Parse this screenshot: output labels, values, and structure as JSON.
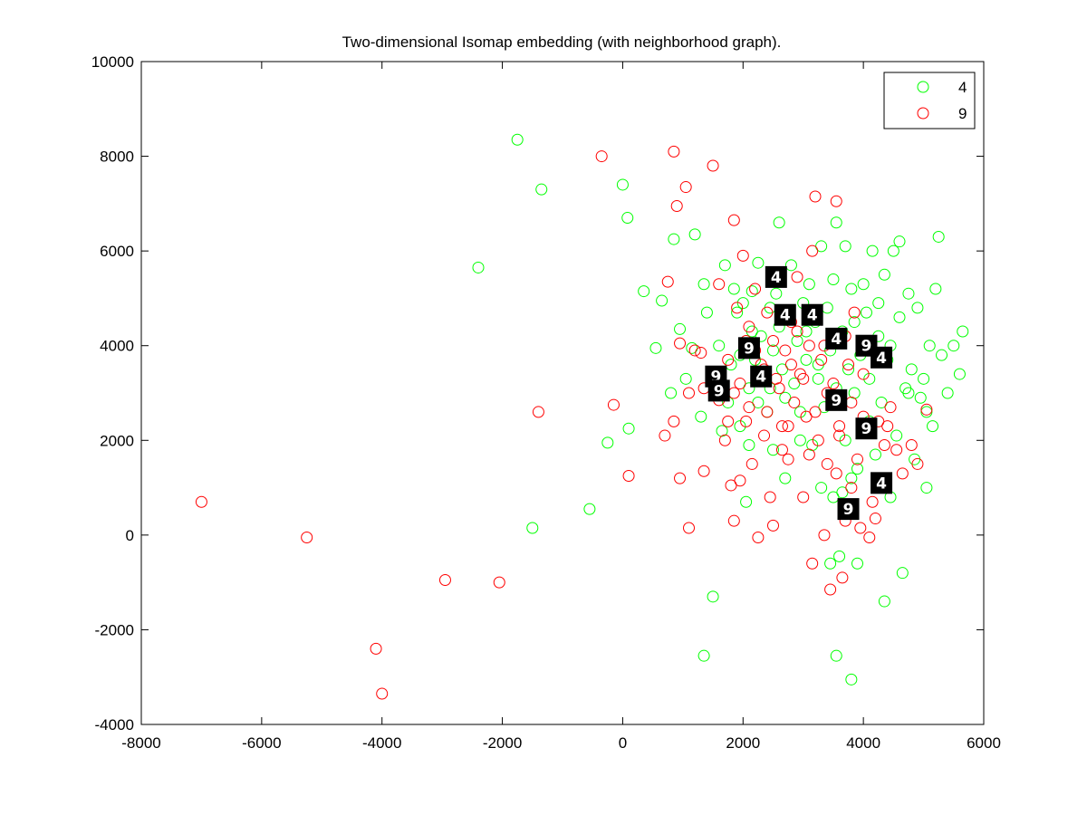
{
  "chart_data": {
    "type": "scatter",
    "title": "Two-dimensional Isomap embedding (with neighborhood graph).",
    "xlabel": "",
    "ylabel": "",
    "xlim": [
      -8000,
      6000
    ],
    "ylim": [
      -4000,
      10000
    ],
    "xticks": [
      -8000,
      -6000,
      -4000,
      -2000,
      0,
      2000,
      4000,
      6000
    ],
    "yticks": [
      -4000,
      -2000,
      0,
      2000,
      4000,
      6000,
      8000,
      10000
    ],
    "xtick_labels": [
      "-8000",
      "-6000",
      "-4000",
      "-2000",
      "0",
      "2000",
      "4000",
      "6000"
    ],
    "ytick_labels": [
      "-4000",
      "-2000",
      "0",
      "2000",
      "4000",
      "6000",
      "8000",
      "10000"
    ],
    "grid": false,
    "legend_position": "top-right",
    "series": [
      {
        "name": "4",
        "color": "#00ff00",
        "marker": "circle-open",
        "points": [
          [
            -1750,
            8350
          ],
          [
            -1350,
            7300
          ],
          [
            -2400,
            5650
          ],
          [
            -1500,
            150
          ],
          [
            -550,
            550
          ],
          [
            -250,
            1950
          ],
          [
            0,
            7400
          ],
          [
            80,
            6700
          ],
          [
            100,
            2250
          ],
          [
            350,
            5150
          ],
          [
            550,
            3950
          ],
          [
            650,
            4950
          ],
          [
            800,
            3000
          ],
          [
            850,
            6250
          ],
          [
            950,
            4350
          ],
          [
            1050,
            3300
          ],
          [
            1150,
            3950
          ],
          [
            1200,
            6350
          ],
          [
            1300,
            2500
          ],
          [
            1350,
            5300
          ],
          [
            1400,
            4700
          ],
          [
            1350,
            -2550
          ],
          [
            1500,
            -1300
          ],
          [
            1600,
            4000
          ],
          [
            1700,
            5700
          ],
          [
            1750,
            2800
          ],
          [
            1800,
            3600
          ],
          [
            1850,
            5200
          ],
          [
            1900,
            4700
          ],
          [
            1950,
            2300
          ],
          [
            2000,
            4900
          ],
          [
            2050,
            700
          ],
          [
            2100,
            3100
          ],
          [
            2150,
            5150
          ],
          [
            2200,
            3700
          ],
          [
            2250,
            5750
          ],
          [
            2250,
            2800
          ],
          [
            2300,
            4200
          ],
          [
            2350,
            3300
          ],
          [
            2400,
            2600
          ],
          [
            2450,
            4800
          ],
          [
            2500,
            3900
          ],
          [
            2550,
            5100
          ],
          [
            2600,
            6600
          ],
          [
            2600,
            4400
          ],
          [
            2650,
            3500
          ],
          [
            2700,
            2900
          ],
          [
            2750,
            4700
          ],
          [
            2800,
            5700
          ],
          [
            2850,
            3200
          ],
          [
            2900,
            4100
          ],
          [
            2950,
            2600
          ],
          [
            3000,
            4900
          ],
          [
            3050,
            3700
          ],
          [
            3100,
            5300
          ],
          [
            3150,
            1900
          ],
          [
            3200,
            4500
          ],
          [
            3250,
            3300
          ],
          [
            3300,
            6100
          ],
          [
            3350,
            2700
          ],
          [
            3400,
            4800
          ],
          [
            3450,
            3900
          ],
          [
            3500,
            5400
          ],
          [
            3500,
            800
          ],
          [
            3550,
            6600
          ],
          [
            3550,
            3100
          ],
          [
            3600,
            -450
          ],
          [
            3650,
            4300
          ],
          [
            3700,
            2000
          ],
          [
            3700,
            6100
          ],
          [
            3750,
            3500
          ],
          [
            3800,
            5200
          ],
          [
            3800,
            1200
          ],
          [
            3850,
            4500
          ],
          [
            3900,
            -600
          ],
          [
            3950,
            3800
          ],
          [
            4000,
            5300
          ],
          [
            4000,
            2200
          ],
          [
            4050,
            4700
          ],
          [
            4100,
            3300
          ],
          [
            4150,
            6000
          ],
          [
            4200,
            1700
          ],
          [
            4250,
            4200
          ],
          [
            4300,
            2800
          ],
          [
            4350,
            5500
          ],
          [
            4400,
            3700
          ],
          [
            4450,
            4000
          ],
          [
            4450,
            800
          ],
          [
            4500,
            6000
          ],
          [
            4550,
            2100
          ],
          [
            4600,
            4600
          ],
          [
            4650,
            -800
          ],
          [
            4700,
            3100
          ],
          [
            4750,
            5100
          ],
          [
            4800,
            3500
          ],
          [
            4850,
            1600
          ],
          [
            4900,
            4800
          ],
          [
            4950,
            2900
          ],
          [
            5000,
            3300
          ],
          [
            5050,
            1000
          ],
          [
            5100,
            4000
          ],
          [
            5150,
            2300
          ],
          [
            5200,
            5200
          ],
          [
            5250,
            6300
          ],
          [
            5300,
            3800
          ],
          [
            5400,
            3000
          ],
          [
            5500,
            4000
          ],
          [
            5600,
            3400
          ],
          [
            5650,
            4300
          ],
          [
            4350,
            -1400
          ],
          [
            3550,
            -2550
          ],
          [
            3800,
            -3050
          ],
          [
            3450,
            -600
          ],
          [
            4600,
            6200
          ],
          [
            4100,
            2400
          ],
          [
            3900,
            1400
          ],
          [
            3300,
            1000
          ],
          [
            2950,
            2000
          ],
          [
            2500,
            1800
          ],
          [
            2100,
            1900
          ],
          [
            2700,
            1200
          ],
          [
            3650,
            900
          ],
          [
            4750,
            3000
          ],
          [
            5050,
            2600
          ],
          [
            3250,
            3600
          ],
          [
            2450,
            3100
          ],
          [
            1950,
            3800
          ],
          [
            1650,
            2200
          ],
          [
            2150,
            4300
          ],
          [
            3050,
            4300
          ],
          [
            3850,
            3000
          ],
          [
            4250,
            4900
          ]
        ]
      },
      {
        "name": "9",
        "color": "#ff0000",
        "marker": "circle-open",
        "points": [
          [
            -7000,
            700
          ],
          [
            -5250,
            -50
          ],
          [
            -4100,
            -2400
          ],
          [
            -4000,
            -3350
          ],
          [
            -2950,
            -950
          ],
          [
            -2050,
            -1000
          ],
          [
            -1400,
            2600
          ],
          [
            -350,
            8000
          ],
          [
            -150,
            2750
          ],
          [
            100,
            1250
          ],
          [
            700,
            2100
          ],
          [
            750,
            5350
          ],
          [
            850,
            8100
          ],
          [
            900,
            6950
          ],
          [
            950,
            4050
          ],
          [
            1050,
            7350
          ],
          [
            1100,
            150
          ],
          [
            1200,
            3900
          ],
          [
            1300,
            3850
          ],
          [
            1350,
            1350
          ],
          [
            1500,
            7800
          ],
          [
            1500,
            3350
          ],
          [
            1600,
            2850
          ],
          [
            1700,
            2000
          ],
          [
            1750,
            3700
          ],
          [
            1800,
            1050
          ],
          [
            1850,
            6650
          ],
          [
            1850,
            300
          ],
          [
            1900,
            4800
          ],
          [
            1950,
            3200
          ],
          [
            2000,
            5900
          ],
          [
            2050,
            2400
          ],
          [
            2100,
            4400
          ],
          [
            2150,
            1500
          ],
          [
            2200,
            5200
          ],
          [
            2250,
            -50
          ],
          [
            2300,
            3600
          ],
          [
            2350,
            2100
          ],
          [
            2400,
            4700
          ],
          [
            2450,
            800
          ],
          [
            2500,
            200
          ],
          [
            2550,
            3300
          ],
          [
            2600,
            5500
          ],
          [
            2650,
            2300
          ],
          [
            2700,
            3900
          ],
          [
            2750,
            1600
          ],
          [
            2800,
            4500
          ],
          [
            2850,
            2800
          ],
          [
            2900,
            5450
          ],
          [
            2950,
            3400
          ],
          [
            3000,
            800
          ],
          [
            3050,
            2500
          ],
          [
            3100,
            4000
          ],
          [
            3150,
            6000
          ],
          [
            3150,
            -600
          ],
          [
            3200,
            7150
          ],
          [
            3250,
            2000
          ],
          [
            3300,
            3700
          ],
          [
            3350,
            0
          ],
          [
            3400,
            1500
          ],
          [
            3450,
            -1150
          ],
          [
            3500,
            3200
          ],
          [
            3550,
            7050
          ],
          [
            3550,
            1300
          ],
          [
            3600,
            2300
          ],
          [
            3650,
            -900
          ],
          [
            3700,
            300
          ],
          [
            3750,
            3600
          ],
          [
            3800,
            2800
          ],
          [
            3850,
            4700
          ],
          [
            3900,
            1600
          ],
          [
            3950,
            150
          ],
          [
            4000,
            2500
          ],
          [
            4050,
            3900
          ],
          [
            4100,
            -50
          ],
          [
            4150,
            700
          ],
          [
            4200,
            350
          ],
          [
            4250,
            2400
          ],
          [
            4350,
            1900
          ],
          [
            4450,
            2700
          ],
          [
            4550,
            1800
          ],
          [
            4650,
            1300
          ],
          [
            4800,
            1900
          ],
          [
            4900,
            1500
          ],
          [
            5050,
            2650
          ],
          [
            1850,
            3000
          ],
          [
            2100,
            2700
          ],
          [
            2400,
            2600
          ],
          [
            2600,
            3100
          ],
          [
            2800,
            3600
          ],
          [
            3000,
            3300
          ],
          [
            3200,
            2600
          ],
          [
            3400,
            3000
          ],
          [
            2200,
            3900
          ],
          [
            2500,
            4100
          ],
          [
            2900,
            4300
          ],
          [
            1600,
            5300
          ],
          [
            1950,
            1150
          ],
          [
            1350,
            3100
          ],
          [
            1100,
            3000
          ],
          [
            950,
            1200
          ],
          [
            850,
            2400
          ],
          [
            3600,
            2100
          ],
          [
            3800,
            1000
          ],
          [
            2750,
            2300
          ],
          [
            2350,
            3500
          ],
          [
            3700,
            4200
          ],
          [
            4000,
            3400
          ],
          [
            4400,
            2300
          ],
          [
            3350,
            4000
          ],
          [
            1750,
            2400
          ],
          [
            2050,
            4100
          ],
          [
            2650,
            1800
          ],
          [
            3100,
            1700
          ]
        ]
      }
    ],
    "thumbnails": [
      {
        "x": 2550,
        "y": 5450,
        "label": "4"
      },
      {
        "x": 2700,
        "y": 4650,
        "label": "4"
      },
      {
        "x": 3150,
        "y": 4650,
        "label": "4"
      },
      {
        "x": 3550,
        "y": 4150,
        "label": "4"
      },
      {
        "x": 2100,
        "y": 3950,
        "label": "9"
      },
      {
        "x": 4050,
        "y": 4000,
        "label": "9"
      },
      {
        "x": 4300,
        "y": 3750,
        "label": "4"
      },
      {
        "x": 1550,
        "y": 3350,
        "label": "9"
      },
      {
        "x": 2300,
        "y": 3350,
        "label": "4"
      },
      {
        "x": 1600,
        "y": 3050,
        "label": "9"
      },
      {
        "x": 3550,
        "y": 2850,
        "label": "9"
      },
      {
        "x": 4050,
        "y": 2250,
        "label": "9"
      },
      {
        "x": 4300,
        "y": 1100,
        "label": "4"
      },
      {
        "x": 3750,
        "y": 550,
        "label": "9"
      }
    ]
  }
}
